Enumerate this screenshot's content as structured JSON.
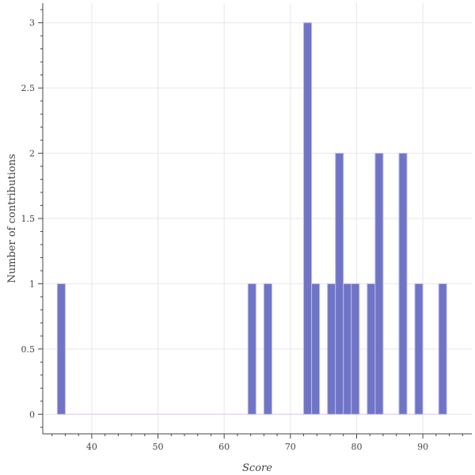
{
  "chart_data": {
    "type": "bar",
    "subtype": "histogram",
    "xlabel": "Score",
    "ylabel": "Number of contributions",
    "xlim": [
      32.6,
      97.4
    ],
    "ylim": [
      -0.15,
      3.15
    ],
    "x_ticks": [
      40,
      50,
      60,
      70,
      80,
      90
    ],
    "x_tick_labels": [
      "40",
      "50",
      "60",
      "70",
      "80",
      "90"
    ],
    "y_ticks": [
      0,
      0.5,
      1,
      1.5,
      2,
      2.5,
      3
    ],
    "y_tick_labels": [
      "0",
      "0.5",
      "1",
      "1.5",
      "2",
      "2.5",
      "3"
    ],
    "grid": true,
    "bin_width": 1.2,
    "bin_start": 34.8,
    "counts": [
      1,
      0,
      0,
      0,
      0,
      0,
      0,
      0,
      0,
      0,
      0,
      0,
      0,
      0,
      0,
      0,
      0,
      0,
      0,
      0,
      0,
      0,
      0,
      0,
      1,
      0,
      1,
      0,
      0,
      0,
      0,
      3,
      1,
      0,
      1,
      2,
      1,
      1,
      0,
      1,
      2,
      0,
      0,
      2,
      0,
      1,
      0,
      0,
      1
    ],
    "colors": {
      "bar_fill": "#6f74c7",
      "bar_edge": "#b9bce8",
      "grid": "#e6e6ef",
      "axis": "#444444",
      "zero_line": "#e3c8ee"
    }
  }
}
